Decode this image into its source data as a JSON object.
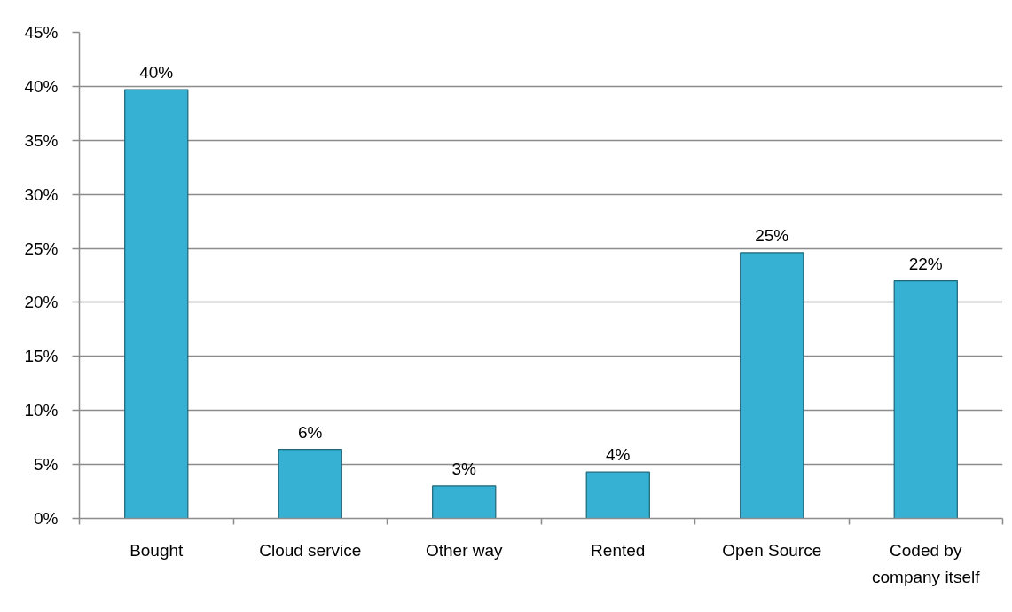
{
  "chart_data": {
    "type": "bar",
    "categories": [
      "Bought",
      "Cloud service",
      "Other way",
      "Rented",
      "Open Source",
      "Coded by company itself"
    ],
    "values": [
      39.7,
      6.4,
      3.0,
      4.3,
      24.6,
      22.0
    ],
    "value_labels": [
      "40%",
      "6%",
      "3%",
      "4%",
      "25%",
      "22%"
    ],
    "color": "#36b1d3",
    "ylim": [
      0,
      45
    ],
    "yticks": [
      {
        "value": 0,
        "label": "0%"
      },
      {
        "value": 5,
        "label": "5%"
      },
      {
        "value": 10,
        "label": "10%"
      },
      {
        "value": 15,
        "label": "15%"
      },
      {
        "value": 20,
        "label": "20%"
      },
      {
        "value": 25,
        "label": "25%"
      },
      {
        "value": 30,
        "label": "30%"
      },
      {
        "value": 35,
        "label": "35%"
      },
      {
        "value": 40,
        "label": "40%"
      },
      {
        "value": 45,
        "label": "45%"
      }
    ],
    "grid": "y"
  }
}
